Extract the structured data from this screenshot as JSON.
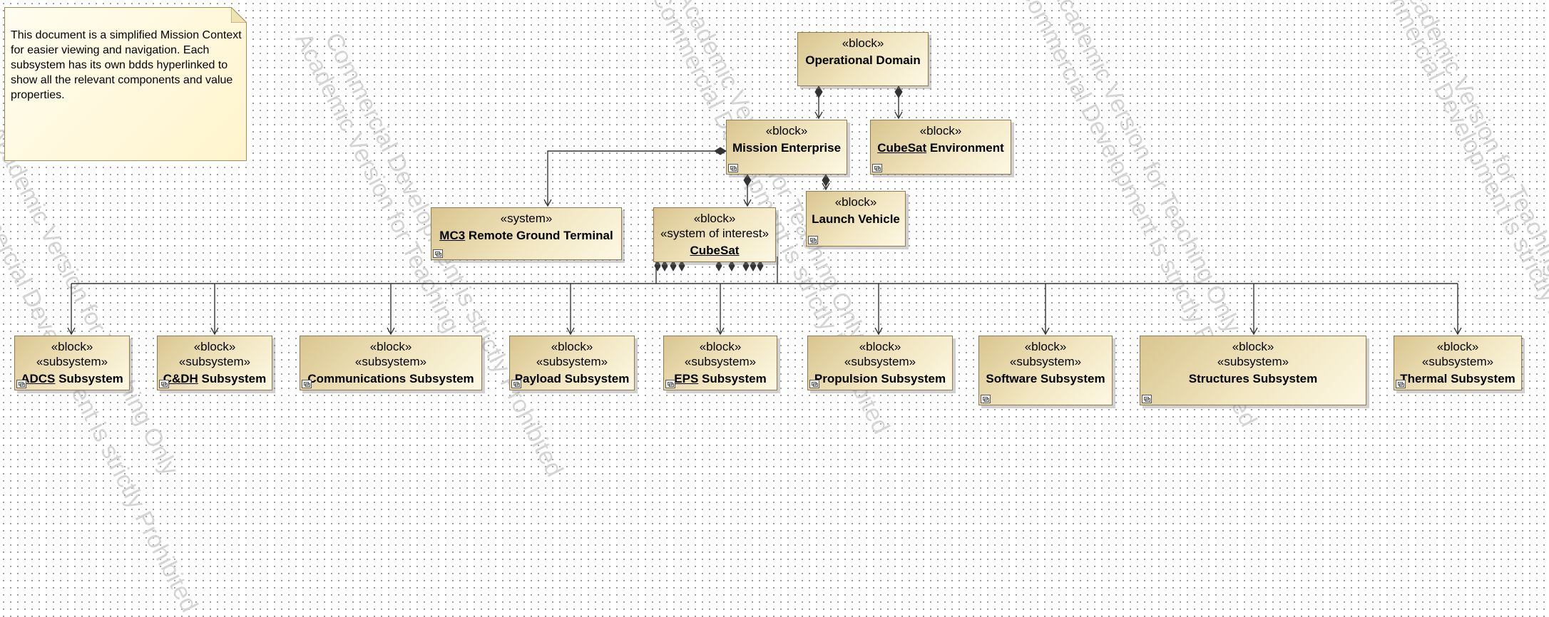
{
  "note": "This document is a simplified Mission Context for easier viewing and navigation. Each subsystem has its own bdds hyperlinked to show all the relevant components and value properties.",
  "watermarks": [
    "Academic Version for Teaching Only",
    "Commercial Development is strictly Prohibited"
  ],
  "blocks": {
    "operational_domain": {
      "stereotypes": [
        "«block»"
      ],
      "name": "Operational Domain"
    },
    "mission_enterprise": {
      "stereotypes": [
        "«block»"
      ],
      "name": "Mission Enterprise"
    },
    "cubesat_environment": {
      "stereotypes": [
        "«block»"
      ],
      "name_link": "CubeSat",
      "name_rest": " Environment"
    },
    "launch_vehicle": {
      "stereotypes": [
        "«block»"
      ],
      "name": "Launch Vehicle"
    },
    "remote_ground_terminal": {
      "stereotypes": [
        "«system»"
      ],
      "name_link": "MC3",
      "name_rest": " Remote Ground Terminal"
    },
    "cubesat": {
      "stereotypes": [
        "«block»",
        "«system of interest»"
      ],
      "name_link": "CubeSat"
    },
    "adcs": {
      "stereotypes": [
        "«block»",
        "«subsystem»"
      ],
      "name_link": "ADCS",
      "name_rest": " Subsystem"
    },
    "cdh": {
      "stereotypes": [
        "«block»",
        "«subsystem»"
      ],
      "name_link": "C&DH",
      "name_rest": " Subsystem"
    },
    "communications": {
      "stereotypes": [
        "«block»",
        "«subsystem»"
      ],
      "name": "Communications Subsystem"
    },
    "payload": {
      "stereotypes": [
        "«block»",
        "«subsystem»"
      ],
      "name": "Payload Subsystem"
    },
    "eps": {
      "stereotypes": [
        "«block»",
        "«subsystem»"
      ],
      "name_link": "EPS",
      "name_rest": " Subsystem"
    },
    "propulsion": {
      "stereotypes": [
        "«block»",
        "«subsystem»"
      ],
      "name": "Propulsion Subsystem"
    },
    "software": {
      "stereotypes": [
        "«block»",
        "«subsystem»"
      ],
      "name": "Software Subsystem"
    },
    "structures": {
      "stereotypes": [
        "«block»",
        "«subsystem»"
      ],
      "name": "Structures Subsystem"
    },
    "thermal": {
      "stereotypes": [
        "«block»",
        "«subsystem»"
      ],
      "name": "Thermal Subsystem"
    }
  }
}
